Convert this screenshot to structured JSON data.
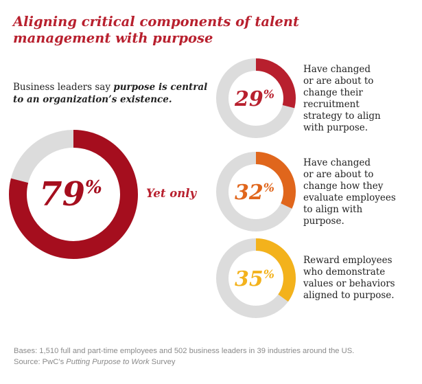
{
  "title": "Aligning critical components of talent management with purpose",
  "intro": {
    "prefix": "Business leaders say ",
    "emphasis": "purpose is central to an organization’s existence."
  },
  "connector": "Yet only",
  "colors": {
    "red": "#b8202e",
    "dark_red": "#a50e1e",
    "orange": "#e0661c",
    "yellow": "#f3b21c",
    "gray": "#dcdcdc",
    "text": "#222222",
    "footnote": "#8a8a8a"
  },
  "chart_data": [
    {
      "type": "pie",
      "variant": "donut",
      "name": "main",
      "value": 79,
      "label": "79",
      "unit": "%",
      "color": "#a50e1e",
      "text_color": "#a50e1e",
      "description": "Business leaders say purpose is central to an organization’s existence."
    },
    {
      "type": "pie",
      "variant": "donut",
      "name": "recruitment",
      "value": 29,
      "label": "29",
      "unit": "%",
      "color": "#b8202e",
      "text_color": "#b8202e",
      "lines": [
        "Have changed",
        "or are about to",
        "change their",
        "recruitment",
        "strategy to align",
        "with purpose."
      ]
    },
    {
      "type": "pie",
      "variant": "donut",
      "name": "evaluation",
      "value": 32,
      "label": "32",
      "unit": "%",
      "color": "#e0661c",
      "text_color": "#e0661c",
      "lines": [
        "Have changed",
        "or are about to",
        "change how they",
        "evaluate employees",
        "to align with",
        "purpose."
      ]
    },
    {
      "type": "pie",
      "variant": "donut",
      "name": "rewards",
      "value": 35,
      "label": "35",
      "unit": "%",
      "color": "#f3b21c",
      "text_color": "#f3b21c",
      "lines": [
        "Reward employees",
        "who demonstrate",
        "values or behaviors",
        "aligned to purpose."
      ]
    }
  ],
  "footnote": {
    "bases": "Bases: 1,510 full and part-time employees and 502 business leaders in 39 industries around the US.",
    "source_prefix": "Source: PwC’s ",
    "source_title": "Putting Purpose to Work",
    "source_suffix": " Survey"
  }
}
